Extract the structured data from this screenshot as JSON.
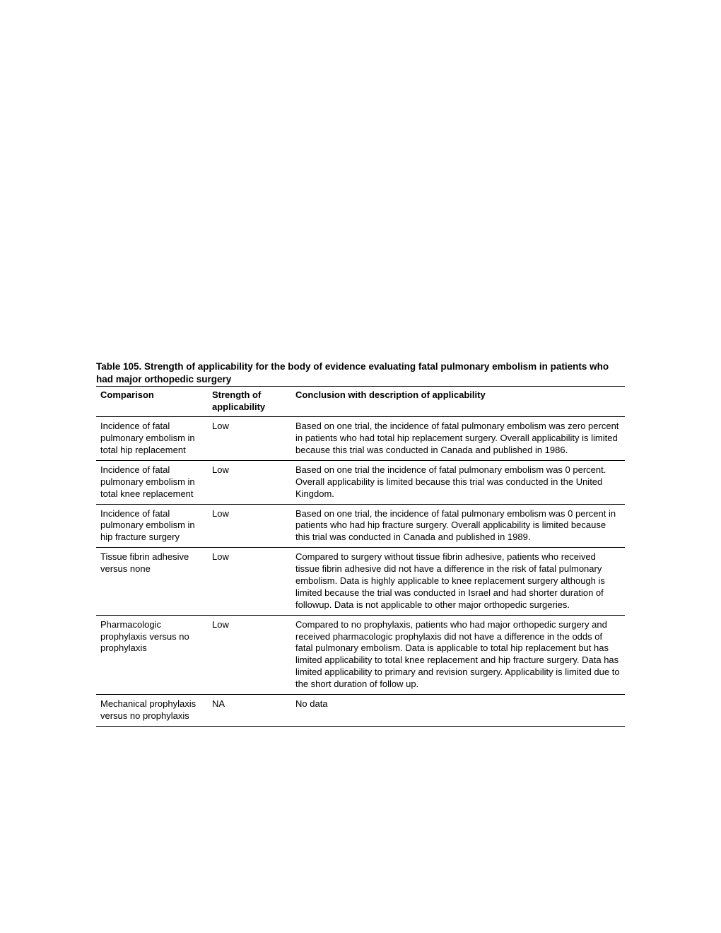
{
  "table": {
    "title": "Table 105. Strength of applicability for the body of evidence evaluating fatal pulmonary embolism in patients who had major orthopedic surgery",
    "columns": {
      "comparison": "Comparison",
      "strength": "Strength of applicability",
      "conclusion": "Conclusion with description of applicability"
    },
    "rows": [
      {
        "comparison": "Incidence of fatal pulmonary embolism in total hip replacement",
        "strength": "Low",
        "conclusion": "Based on one trial, the incidence of fatal pulmonary embolism was zero percent in patients who had total hip replacement surgery. Overall applicability is limited because this trial was conducted in Canada and published in 1986."
      },
      {
        "comparison": "Incidence of fatal pulmonary embolism in total knee replacement",
        "strength": "Low",
        "conclusion": "Based on one trial the incidence of fatal pulmonary embolism was 0 percent. Overall applicability is limited because this trial was conducted in the United Kingdom."
      },
      {
        "comparison": "Incidence of fatal pulmonary embolism in hip fracture surgery",
        "strength": "Low",
        "conclusion": "Based on one trial, the incidence of fatal pulmonary embolism was 0 percent in patients who had hip fracture surgery. Overall applicability is limited because this trial was conducted in Canada and published in 1989."
      },
      {
        "comparison": "Tissue fibrin adhesive versus none",
        "strength": "Low",
        "conclusion": "Compared to surgery without tissue fibrin adhesive, patients who received tissue fibrin adhesive did not have a difference in the risk of fatal pulmonary embolism. Data is highly applicable to knee replacement surgery although is limited because the trial was conducted in Israel and had shorter duration of followup. Data is not applicable to other major orthopedic surgeries."
      },
      {
        "comparison": "Pharmacologic prophylaxis versus no prophylaxis",
        "strength": "Low",
        "conclusion": "Compared to no prophylaxis, patients who had major orthopedic surgery and received pharmacologic prophylaxis did not have a difference in the odds of fatal pulmonary embolism. Data is applicable to total hip replacement but has limited applicability to total knee replacement and hip fracture surgery. Data has limited applicability to primary and revision surgery.  Applicability is limited due to the short duration of follow up."
      },
      {
        "comparison": "Mechanical prophylaxis versus no prophylaxis",
        "strength": "NA",
        "conclusion": "No data"
      }
    ]
  }
}
